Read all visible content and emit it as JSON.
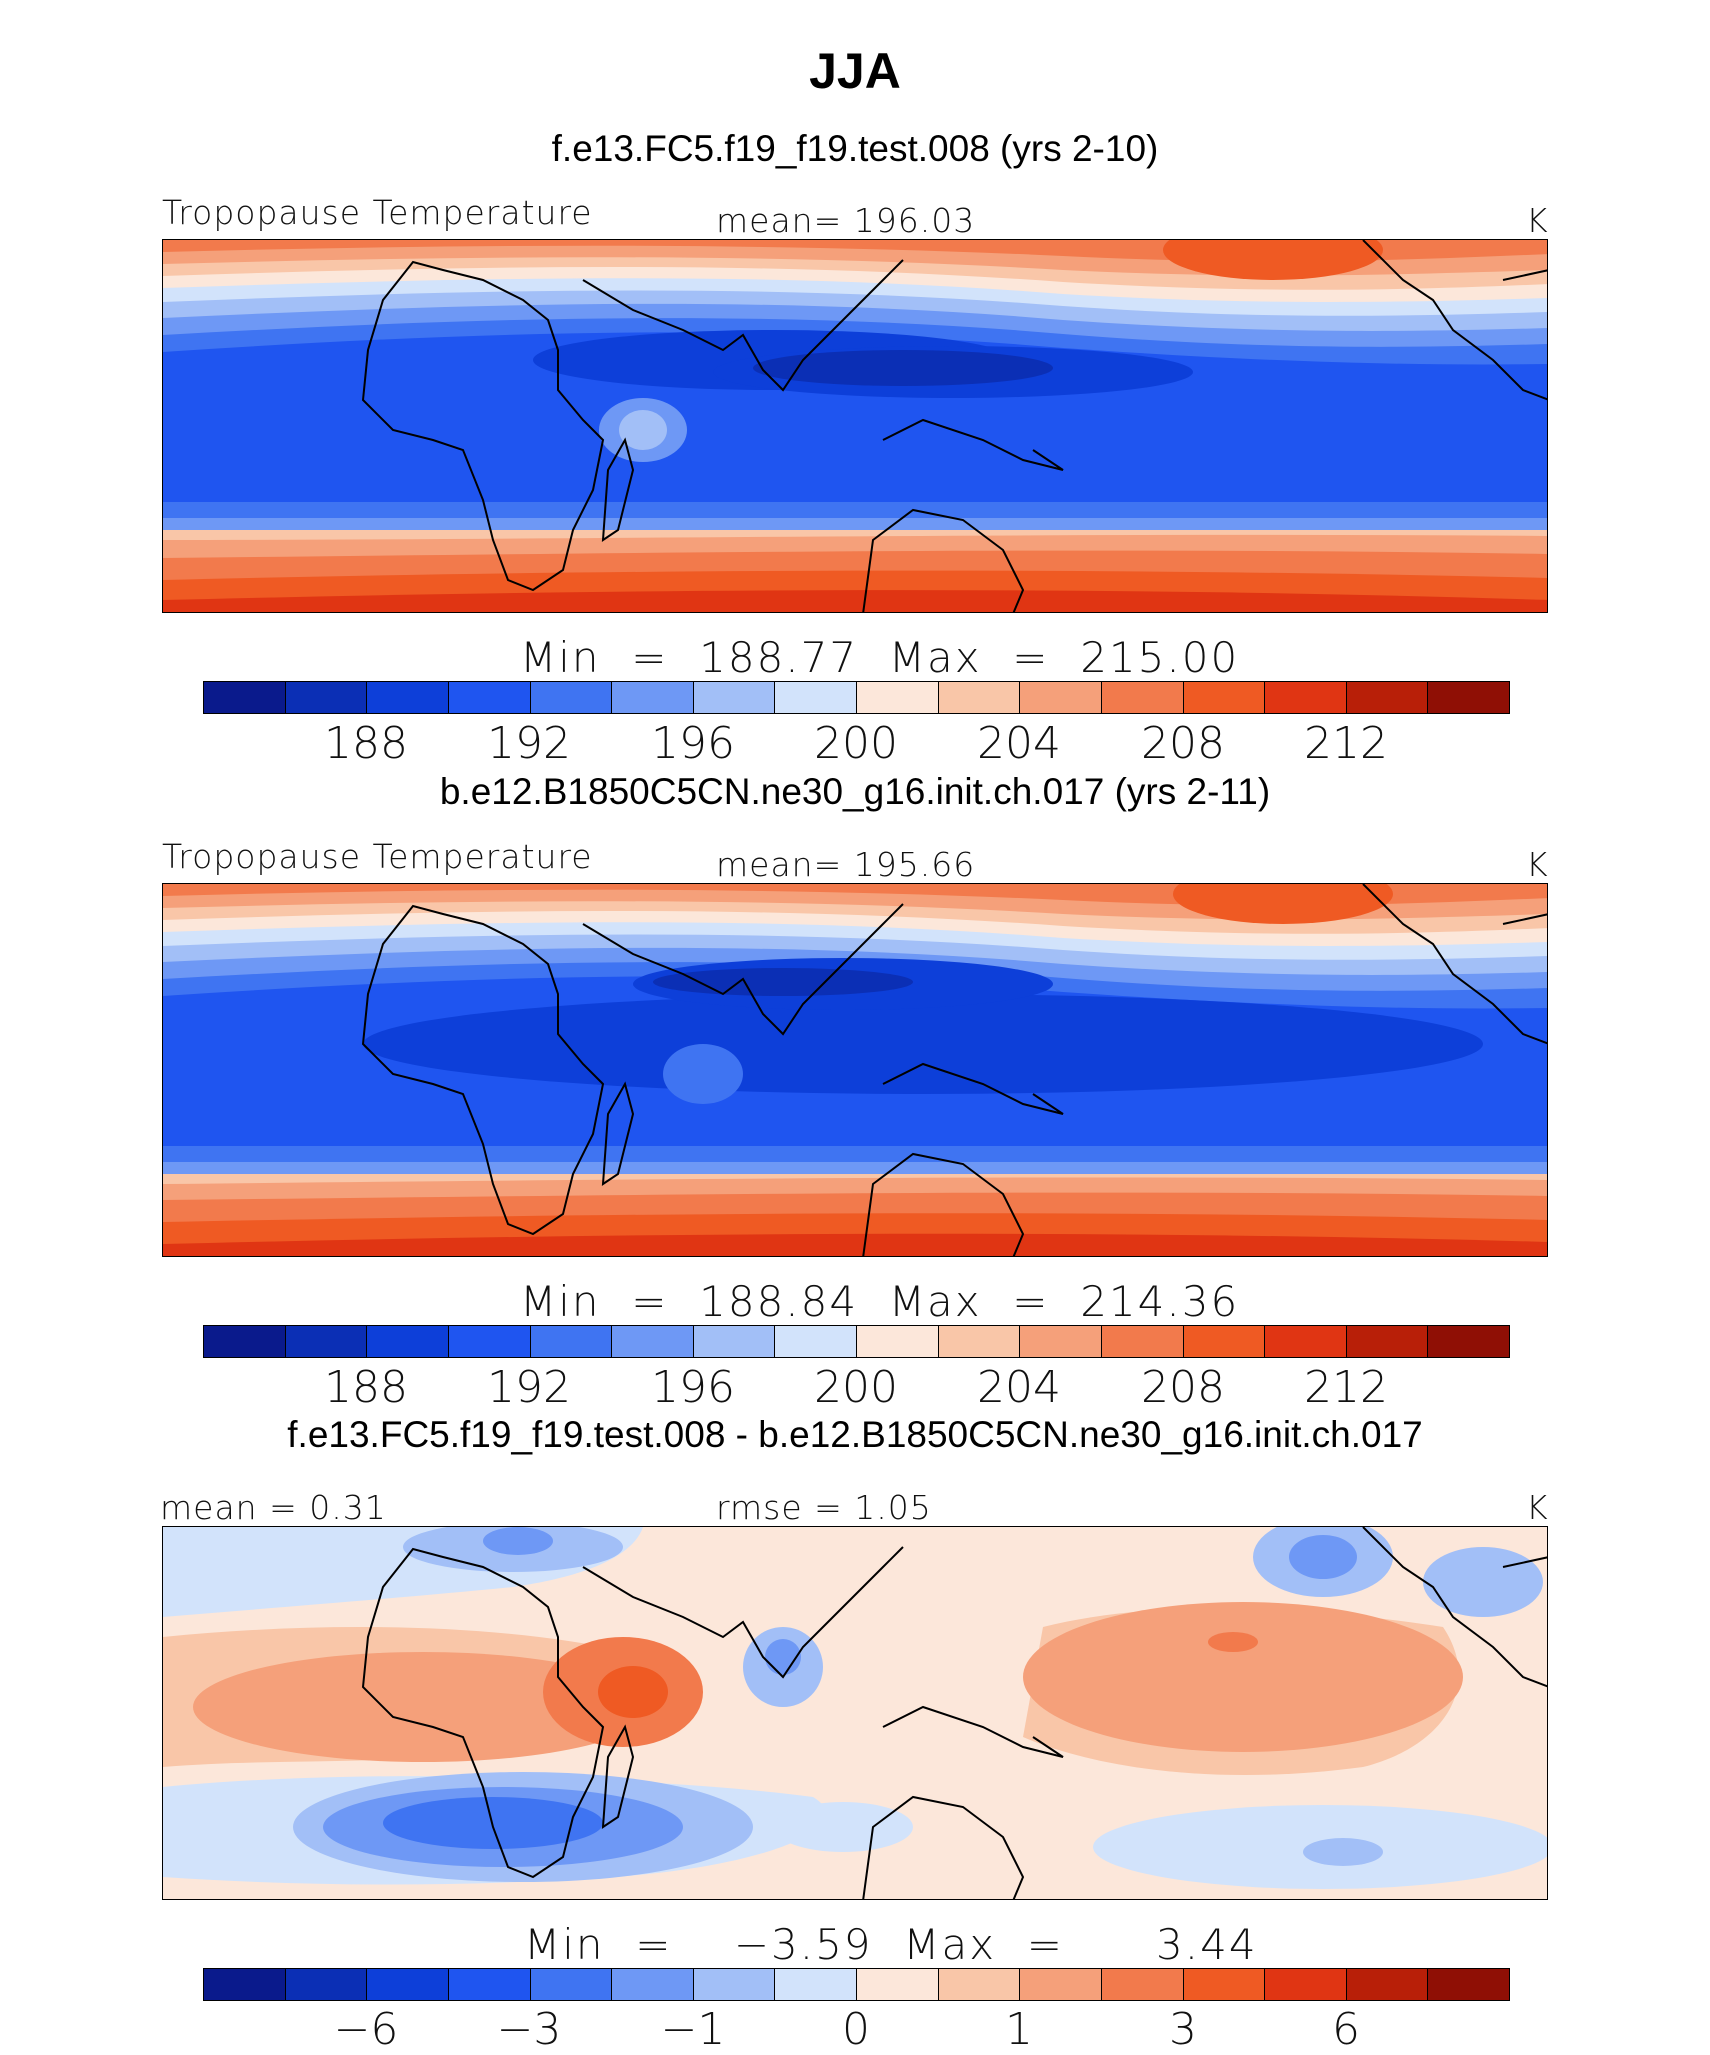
{
  "title": "JJA",
  "colors": [
    "#0a1a8c",
    "#0b2fb5",
    "#0d3fd9",
    "#1f55f0",
    "#3f74f2",
    "#6e98f5",
    "#a2bff7",
    "#d2e3fb",
    "#fce7da",
    "#f9c6a8",
    "#f5a07a",
    "#f27a4c",
    "#ef5a23",
    "#e03513",
    "#b81f08",
    "#8f0f05"
  ],
  "panels": [
    {
      "subtitle": "f.e13.FC5.f19_f19.test.008 (yrs 2-10)",
      "left_label": "Tropopause Temperature",
      "center_label": "mean=  196.03",
      "units": "K",
      "minmax": "Min  =  188.77  Max  =  215.00",
      "ticks": [
        "188",
        "192",
        "196",
        "200",
        "204",
        "208",
        "212"
      ]
    },
    {
      "subtitle": "b.e12.B1850C5CN.ne30_g16.init.ch.017 (yrs 2-11)",
      "left_label": "Tropopause Temperature",
      "center_label": "mean=  195.66",
      "units": "K",
      "minmax": "Min  =  188.84  Max  =  214.36",
      "ticks": [
        "188",
        "192",
        "196",
        "200",
        "204",
        "208",
        "212"
      ]
    },
    {
      "subtitle": "f.e13.FC5.f19_f19.test.008 - b.e12.B1850C5CN.ne30_g16.init.ch.017",
      "left_label": "mean =     0.31",
      "center_label": "rmse =     1.05",
      "units": "K",
      "minmax": "Min  =    −3.59  Max  =      3.44",
      "ticks": [
        "−6",
        "−3",
        "−1",
        "0",
        "1",
        "3",
        "6"
      ]
    }
  ]
}
